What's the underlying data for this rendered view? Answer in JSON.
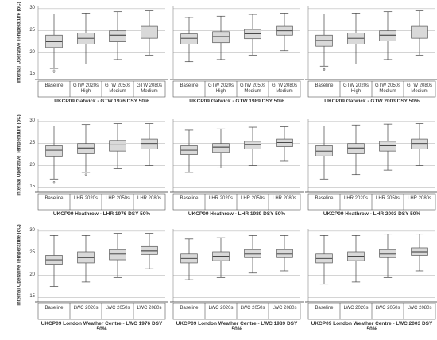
{
  "chart_data": [
    {
      "type": "box",
      "title": "UKCP09 Gatwick - GTW 1976 DSY 50%",
      "ylabel": "Internal Operative Temperature (oC)",
      "ytick_labels": true,
      "categories": [
        "Baseline",
        "GTW 2020s High",
        "GTW 2050s Medium",
        "GTW 2080s Medium"
      ],
      "boxes": [
        {
          "whislo": 16.5,
          "q1": 21.2,
          "med": 22.5,
          "q3": 24,
          "whishi": 28.8,
          "fliers": [
            16,
            15.7
          ]
        },
        {
          "whislo": 17.5,
          "q1": 22,
          "med": 23.3,
          "q3": 24.5,
          "whishi": 29,
          "fliers": []
        },
        {
          "whislo": 18.5,
          "q1": 22.5,
          "med": 24,
          "q3": 25,
          "whishi": 29.3,
          "fliers": []
        },
        {
          "whislo": 19.5,
          "q1": 23.3,
          "med": 24.5,
          "q3": 26,
          "whishi": 29.5,
          "fliers": []
        }
      ],
      "ylim": [
        14,
        30.5
      ],
      "yticks": [
        15,
        20,
        25,
        30
      ],
      "color": "#d9d9d9"
    },
    {
      "type": "box",
      "title": "UKCP09 Gatwick - GTW 1989 DSY 50%",
      "ytick_labels": false,
      "categories": [
        "Baseline",
        "GTW 2020s High",
        "GTW 2050s Medium",
        "GTW 2080s Medium"
      ],
      "boxes": [
        {
          "whislo": 18,
          "q1": 22,
          "med": 23.3,
          "q3": 24.3,
          "whishi": 28,
          "fliers": []
        },
        {
          "whislo": 18.5,
          "q1": 22.3,
          "med": 23.7,
          "q3": 24.8,
          "whishi": 28.3,
          "fliers": []
        },
        {
          "whislo": 19.5,
          "q1": 23.2,
          "med": 24.3,
          "q3": 25.3,
          "whishi": 28.7,
          "fliers": []
        },
        {
          "whislo": 20.5,
          "q1": 24,
          "med": 25,
          "q3": 26,
          "whishi": 29,
          "fliers": []
        }
      ],
      "ylim": [
        14,
        30.5
      ],
      "yticks": [
        15,
        20,
        25,
        30
      ],
      "color": "#d9d9d9"
    },
    {
      "type": "box",
      "title": "UKCP09 Gatwick - GTW 2003 DSY 50%",
      "ytick_labels": false,
      "categories": [
        "Baseline",
        "GTW 2020s High",
        "GTW 2050s Medium",
        "GTW 2080s Medium"
      ],
      "boxes": [
        {
          "whislo": 17,
          "q1": 21.5,
          "med": 22.8,
          "q3": 24,
          "whishi": 28.8,
          "fliers": [
            16.5,
            16.2
          ]
        },
        {
          "whislo": 17.5,
          "q1": 22,
          "med": 23.3,
          "q3": 24.5,
          "whishi": 29,
          "fliers": []
        },
        {
          "whislo": 18.5,
          "q1": 22.7,
          "med": 24,
          "q3": 25,
          "whishi": 29.3,
          "fliers": []
        },
        {
          "whislo": 19.5,
          "q1": 23.3,
          "med": 24.5,
          "q3": 26,
          "whishi": 29.5,
          "fliers": []
        }
      ],
      "ylim": [
        14,
        30.5
      ],
      "yticks": [
        15,
        20,
        25,
        30
      ],
      "color": "#d9d9d9"
    },
    {
      "type": "box",
      "title": "UKCP09 Heathrow - LHR 1976 DSY 50%",
      "ylabel": "Internal Operative Temperature (oC)",
      "ytick_labels": true,
      "categories": [
        "Baseline",
        "LHR 2020s",
        "LHR 2050s",
        "LHR 2080s"
      ],
      "boxes": [
        {
          "whislo": 17,
          "q1": 22,
          "med": 23.5,
          "q3": 24.5,
          "whishi": 29,
          "fliers": [
            16.3
          ]
        },
        {
          "whislo": 18.5,
          "q1": 22.7,
          "med": 24,
          "q3": 25,
          "whishi": 29.3,
          "fliers": [
            18
          ]
        },
        {
          "whislo": 19.3,
          "q1": 23.3,
          "med": 24.7,
          "q3": 25.7,
          "whishi": 29.5,
          "fliers": []
        },
        {
          "whislo": 20,
          "q1": 23.8,
          "med": 25,
          "q3": 26,
          "whishi": 29.5,
          "fliers": []
        }
      ],
      "ylim": [
        14,
        30.5
      ],
      "yticks": [
        15,
        20,
        25,
        30
      ],
      "color": "#d9d9d9"
    },
    {
      "type": "box",
      "title": "UKCP09 Heathrow - LHR 1989 DSY 50%",
      "ytick_labels": false,
      "categories": [
        "Baseline",
        "LHR 2020s",
        "LHR 2050s",
        "LHR 2080s"
      ],
      "boxes": [
        {
          "whislo": 18.5,
          "q1": 22.5,
          "med": 23.5,
          "q3": 24.5,
          "whishi": 28,
          "fliers": []
        },
        {
          "whislo": 19.5,
          "q1": 23,
          "med": 24.2,
          "q3": 25,
          "whishi": 28.3,
          "fliers": []
        },
        {
          "whislo": 20,
          "q1": 23.8,
          "med": 24.8,
          "q3": 25.5,
          "whishi": 28.7,
          "fliers": []
        },
        {
          "whislo": 21,
          "q1": 24.3,
          "med": 25.2,
          "q3": 26,
          "whishi": 28.8,
          "fliers": []
        }
      ],
      "ylim": [
        14,
        30.5
      ],
      "yticks": [
        15,
        20,
        25,
        30
      ],
      "color": "#d9d9d9"
    },
    {
      "type": "box",
      "title": "UKCP09 Heathrow - LHR 2003 DSY 50%",
      "ytick_labels": false,
      "categories": [
        "Baseline",
        "LHR 2020s",
        "LHR 2050s",
        "LHR 2080s"
      ],
      "boxes": [
        {
          "whislo": 17,
          "q1": 22.2,
          "med": 23.3,
          "q3": 24.5,
          "whishi": 29,
          "fliers": []
        },
        {
          "whislo": 18,
          "q1": 22.7,
          "med": 24,
          "q3": 25,
          "whishi": 29.2,
          "fliers": []
        },
        {
          "whislo": 19,
          "q1": 23.3,
          "med": 24.5,
          "q3": 25.5,
          "whishi": 29.4,
          "fliers": []
        },
        {
          "whislo": 20,
          "q1": 23.8,
          "med": 25,
          "q3": 26,
          "whishi": 29.5,
          "fliers": []
        }
      ],
      "ylim": [
        14,
        30.5
      ],
      "yticks": [
        15,
        20,
        25,
        30
      ],
      "color": "#d9d9d9"
    },
    {
      "type": "box",
      "title": "UKCP09 London Weather Centre - LWC 1976 DSY 50%",
      "ylabel": "Internal Operative Temperature (oC)",
      "ytick_labels": true,
      "categories": [
        "Baseline",
        "LWC 2020s",
        "LWC 2050s",
        "LWC 2080s"
      ],
      "boxes": [
        {
          "whislo": 17.5,
          "q1": 22.5,
          "med": 23.5,
          "q3": 24.5,
          "whishi": 29,
          "fliers": []
        },
        {
          "whislo": 18.5,
          "q1": 22.8,
          "med": 24,
          "q3": 25.3,
          "whishi": 29,
          "fliers": []
        },
        {
          "whislo": 19.5,
          "q1": 23.5,
          "med": 24.8,
          "q3": 25.8,
          "whishi": 29.5,
          "fliers": []
        },
        {
          "whislo": 21.5,
          "q1": 24.7,
          "med": 25.5,
          "q3": 26.5,
          "whishi": 29.5,
          "fliers": []
        }
      ],
      "ylim": [
        14,
        30.5
      ],
      "yticks": [
        15,
        20,
        25,
        30
      ],
      "color": "#d9d9d9"
    },
    {
      "type": "box",
      "title": "UKCP09 London Weather Centre - LWC 1989 DSY 50%",
      "ytick_labels": false,
      "categories": [
        "Baseline",
        "LWC 2020s",
        "LWC 2050s",
        "LWC 2080s"
      ],
      "boxes": [
        {
          "whislo": 19,
          "q1": 22.8,
          "med": 23.8,
          "q3": 24.8,
          "whishi": 28.2,
          "fliers": []
        },
        {
          "whislo": 19.5,
          "q1": 23.3,
          "med": 24.3,
          "q3": 25.3,
          "whishi": 28.5,
          "fliers": []
        },
        {
          "whislo": 20.5,
          "q1": 24,
          "med": 24.8,
          "q3": 25.8,
          "whishi": 29,
          "fliers": []
        },
        {
          "whislo": 21,
          "q1": 24,
          "med": 24.8,
          "q3": 25.8,
          "whishi": 29,
          "fliers": []
        }
      ],
      "ylim": [
        14,
        30.5
      ],
      "yticks": [
        15,
        20,
        25,
        30
      ],
      "color": "#d9d9d9"
    },
    {
      "type": "box",
      "title": "UKCP09 London Weather Centre - LWC 2003 DSY 50%",
      "ytick_labels": false,
      "categories": [
        "Baseline",
        "LWC 2020s",
        "LWC 2050s",
        "LWC 2080s"
      ],
      "boxes": [
        {
          "whislo": 18,
          "q1": 22.8,
          "med": 23.8,
          "q3": 24.8,
          "whishi": 29,
          "fliers": []
        },
        {
          "whislo": 18.5,
          "q1": 23.3,
          "med": 24.3,
          "q3": 25.3,
          "whishi": 29,
          "fliers": []
        },
        {
          "whislo": 19.5,
          "q1": 24,
          "med": 24.8,
          "q3": 25.8,
          "whishi": 29.3,
          "fliers": []
        },
        {
          "whislo": 21,
          "q1": 24.5,
          "med": 25.3,
          "q3": 26.2,
          "whishi": 29.3,
          "fliers": []
        }
      ],
      "ylim": [
        14,
        30.5
      ],
      "yticks": [
        15,
        20,
        25,
        30
      ],
      "color": "#d9d9d9"
    }
  ]
}
